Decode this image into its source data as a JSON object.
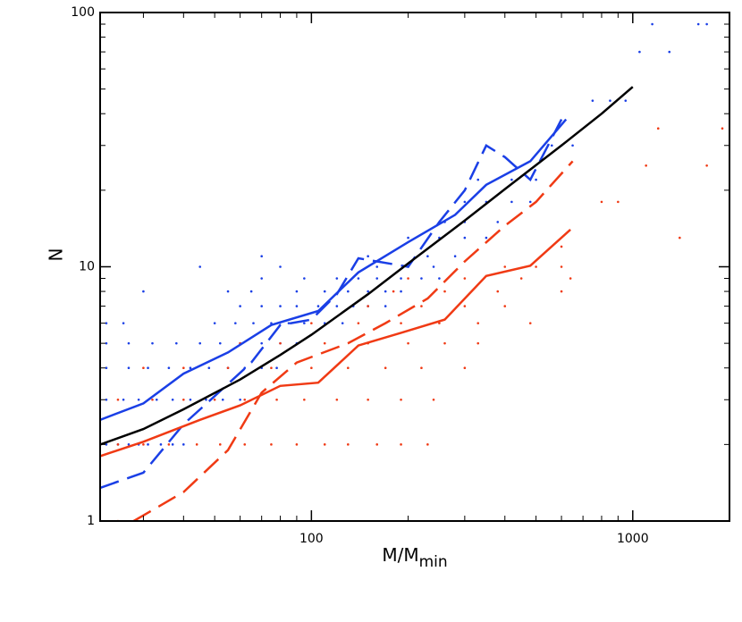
{
  "chart_data": {
    "type": "line",
    "xlabel": {
      "main": "M/M",
      "sub": "min"
    },
    "ylabel": "N",
    "xscale": "log",
    "yscale": "log",
    "xlim": [
      22,
      2000
    ],
    "ylim": [
      1,
      100
    ],
    "xticks": [
      100,
      1000
    ],
    "yticks": [
      1,
      10,
      100
    ],
    "xminorticks": [
      30,
      40,
      50,
      60,
      70,
      80,
      90,
      200,
      300,
      400,
      500,
      600,
      700,
      800,
      900,
      2000
    ],
    "yminorticks": [
      2,
      3,
      4,
      5,
      6,
      7,
      8,
      9,
      20,
      30,
      40,
      50,
      60,
      70,
      80,
      90
    ],
    "series": [
      {
        "kind": "dots",
        "color": "#1a3fe6",
        "x": [
          23,
          25,
          27,
          29,
          31,
          34,
          37,
          40,
          23,
          26,
          29,
          33,
          37,
          42,
          47,
          53,
          60,
          23,
          27,
          31,
          36,
          42,
          48,
          55,
          62,
          70,
          78,
          23,
          27,
          32,
          38,
          45,
          52,
          60,
          70,
          80,
          90,
          23,
          26,
          50,
          58,
          66,
          75,
          85,
          95,
          110,
          125,
          60,
          70,
          80,
          90,
          105,
          120,
          135,
          150,
          170,
          30,
          55,
          65,
          90,
          110,
          130,
          150,
          170,
          190,
          70,
          95,
          120,
          140,
          160,
          190,
          220,
          250,
          45,
          80,
          160,
          200,
          240,
          70,
          150,
          230,
          280,
          200,
          250,
          300,
          350,
          260,
          300,
          380,
          300,
          350,
          420,
          480,
          330,
          420,
          500,
          560,
          600,
          650,
          750,
          850,
          950,
          1050,
          1300,
          1150,
          1600,
          1700
        ],
        "values": [
          2,
          2,
          2,
          2,
          2,
          2,
          2,
          2,
          3,
          3,
          3,
          3,
          3,
          3,
          3,
          3,
          3,
          4,
          4,
          4,
          4,
          4,
          4,
          4,
          4,
          4,
          4,
          5,
          5,
          5,
          5,
          5,
          5,
          5,
          5,
          5,
          5,
          6,
          6,
          6,
          6,
          6,
          6,
          6,
          6,
          6,
          6,
          7,
          7,
          7,
          7,
          7,
          7,
          7,
          7,
          7,
          8,
          8,
          8,
          8,
          8,
          8,
          8,
          8,
          8,
          9,
          9,
          9,
          9,
          9,
          9,
          9,
          9,
          10,
          10,
          10,
          10,
          10,
          11,
          11,
          11,
          11,
          13,
          13,
          13,
          13,
          15,
          15,
          15,
          18,
          18,
          18,
          18,
          22,
          22,
          22,
          30,
          30,
          30,
          45,
          45,
          45,
          70,
          70,
          90,
          90,
          90
        ]
      },
      {
        "kind": "dots",
        "color": "#f03a14",
        "x": [
          22,
          25,
          28,
          25,
          30,
          36,
          44,
          52,
          62,
          75,
          90,
          110,
          130,
          160,
          190,
          230,
          25,
          32,
          40,
          50,
          62,
          78,
          95,
          120,
          150,
          190,
          240,
          30,
          40,
          55,
          75,
          100,
          130,
          170,
          220,
          300,
          60,
          80,
          110,
          150,
          200,
          260,
          330,
          100,
          140,
          190,
          250,
          330,
          480,
          150,
          220,
          300,
          400,
          180,
          260,
          380,
          600,
          200,
          300,
          450,
          640,
          400,
          500,
          600,
          600,
          800,
          900,
          1100,
          1700,
          1200,
          1900,
          1400
        ],
        "values": [
          1,
          1,
          1,
          2,
          2,
          2,
          2,
          2,
          2,
          2,
          2,
          2,
          2,
          2,
          2,
          2,
          3,
          3,
          3,
          3,
          3,
          3,
          3,
          3,
          3,
          3,
          3,
          4,
          4,
          4,
          4,
          4,
          4,
          4,
          4,
          4,
          5,
          5,
          5,
          5,
          5,
          5,
          5,
          6,
          6,
          6,
          6,
          6,
          6,
          7,
          7,
          7,
          7,
          8,
          8,
          8,
          8,
          9,
          9,
          9,
          9,
          10,
          10,
          10,
          12,
          18,
          18,
          25,
          25,
          35,
          35,
          13
        ]
      },
      {
        "kind": "line",
        "dash": "dashed",
        "color": "#1a3fe6",
        "x": [
          22,
          30,
          40,
          50,
          65,
          80,
          100,
          120,
          140,
          200,
          250,
          300,
          350,
          400,
          480,
          600
        ],
        "values": [
          1.35,
          1.55,
          2.4,
          3.1,
          4.2,
          5.9,
          6.2,
          7.8,
          10.8,
          10,
          15,
          20,
          30,
          27,
          22,
          38
        ]
      },
      {
        "kind": "line",
        "dash": "dashed",
        "color": "#f03a14",
        "x": [
          28,
          40,
          55,
          70,
          90,
          130,
          170,
          230,
          300,
          400,
          500,
          650
        ],
        "values": [
          1.0,
          1.3,
          1.9,
          3.2,
          4.2,
          5.0,
          6.0,
          7.5,
          10.5,
          14.5,
          18,
          26
        ]
      },
      {
        "kind": "line",
        "dash": "solid",
        "color": "#f03a14",
        "x": [
          22,
          30,
          45,
          60,
          80,
          105,
          140,
          190,
          260,
          350,
          480,
          640
        ],
        "values": [
          1.8,
          2.05,
          2.5,
          2.85,
          3.4,
          3.5,
          4.9,
          5.5,
          6.2,
          9.2,
          10.1,
          14
        ]
      },
      {
        "kind": "line",
        "dash": "solid",
        "color": "#1a3fe6",
        "x": [
          22,
          30,
          40,
          55,
          75,
          105,
          140,
          200,
          280,
          350,
          480,
          620
        ],
        "values": [
          2.5,
          2.9,
          3.8,
          4.6,
          5.9,
          6.7,
          9.5,
          12.5,
          16,
          21,
          26,
          38
        ]
      },
      {
        "kind": "line",
        "dash": "solid",
        "color": "#000000",
        "x": [
          22,
          30,
          40,
          60,
          80,
          100,
          150,
          200,
          300,
          400,
          600,
          800,
          1000
        ],
        "values": [
          2.0,
          2.3,
          2.75,
          3.6,
          4.5,
          5.4,
          7.8,
          10.3,
          15.2,
          20.2,
          30,
          40,
          51
        ]
      }
    ]
  }
}
